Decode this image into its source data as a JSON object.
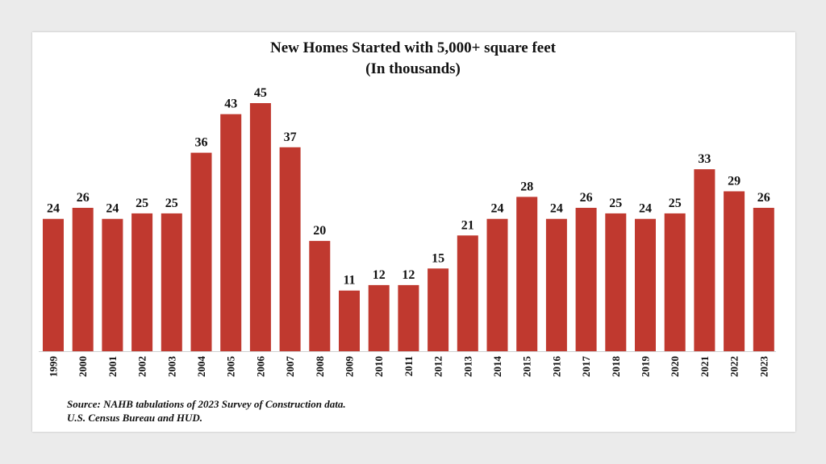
{
  "chart_data": {
    "type": "bar",
    "title": "New Homes Started with 5,000+ square feet",
    "subtitle": "(In thousands)",
    "categories": [
      "1999",
      "2000",
      "2001",
      "2002",
      "2003",
      "2004",
      "2005",
      "2006",
      "2007",
      "2008",
      "2009",
      "2010",
      "2011",
      "2012",
      "2013",
      "2014",
      "2015",
      "2016",
      "2017",
      "2018",
      "2019",
      "2020",
      "2021",
      "2022",
      "2023"
    ],
    "values": [
      24,
      26,
      24,
      25,
      25,
      36,
      43,
      45,
      37,
      20,
      11,
      12,
      12,
      15,
      21,
      24,
      28,
      24,
      26,
      25,
      24,
      25,
      33,
      29,
      26
    ],
    "data_labels": [
      "24",
      "26",
      "24",
      "25",
      "25",
      "36",
      "43",
      "45",
      "37",
      "20",
      "11",
      "12",
      "12",
      "15",
      "21",
      "24",
      "28",
      "24",
      "26",
      "25",
      "24",
      "25",
      "33",
      "29",
      "26"
    ],
    "ylim": [
      0,
      45
    ],
    "grid": false,
    "legend": "none",
    "bar_color": "#c0392f"
  },
  "source_lines": [
    "Source: NAHB tabulations of 2023 Survey of Construction data.",
    "U.S. Census Bureau and HUD."
  ]
}
